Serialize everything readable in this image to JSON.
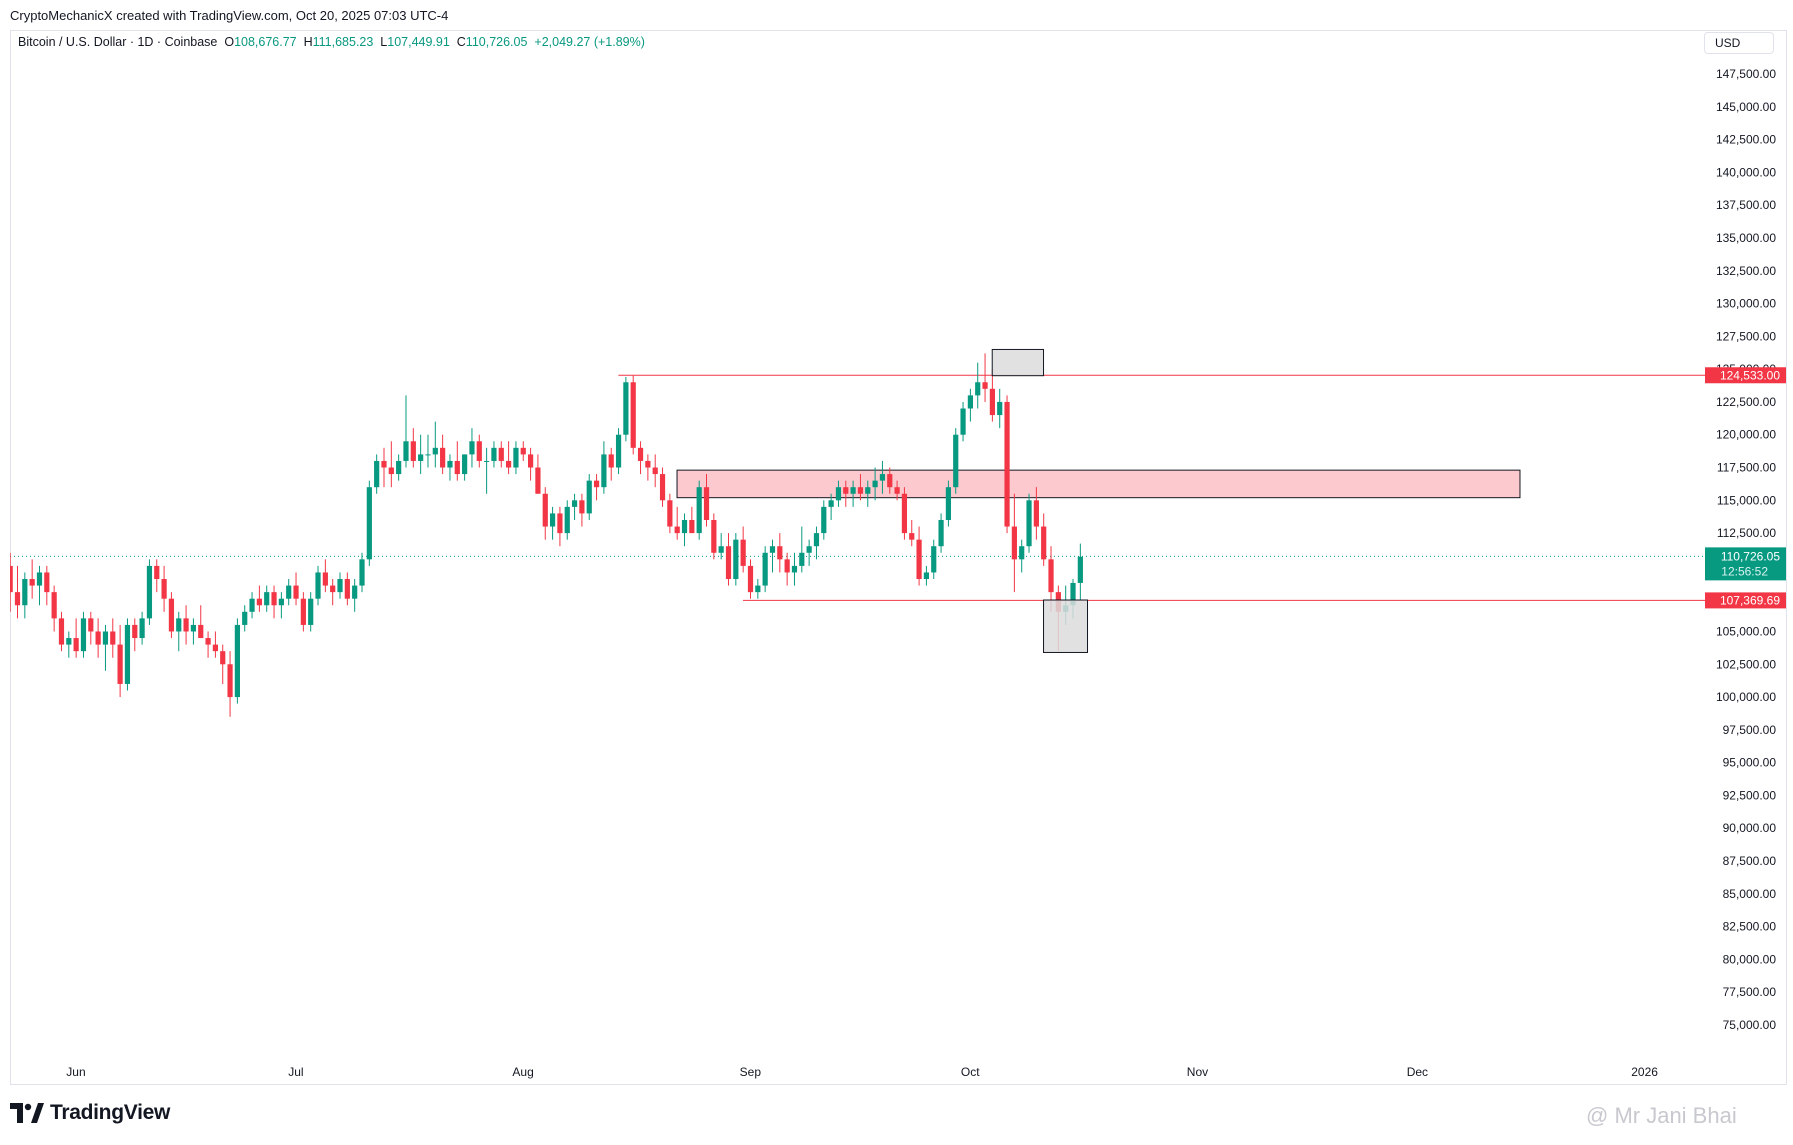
{
  "header": {
    "credit": "CryptoMechanicX created with TradingView.com, Oct 20, 2025 07:03 UTC-4"
  },
  "legend": {
    "symbol": "Bitcoin / U.S. Dollar · 1D · Coinbase",
    "o_label": "O",
    "o_value": "108,676.77",
    "h_label": "H",
    "h_value": "111,685.23",
    "l_label": "L",
    "l_value": "107,449.91",
    "c_label": "C",
    "c_value": "110,726.05",
    "change": "+2,049.27 (+1.89%)"
  },
  "currency": "USD",
  "footer": {
    "brand": "TradingView",
    "watermark": "@ Mr Jani Bhai"
  },
  "colors": {
    "up": "#089981",
    "down": "#f23645",
    "zone_fill": "#fbc9ce",
    "box_fill": "#dcdcdc"
  },
  "chart_data": {
    "type": "candlestick",
    "title": "Bitcoin / U.S. Dollar · 1D · Coinbase",
    "ylim": [
      72500,
      150000
    ],
    "y_ticks": [
      75000,
      77500,
      80000,
      82500,
      85000,
      87500,
      90000,
      92500,
      95000,
      97500,
      100000,
      102500,
      105000,
      107500,
      110000,
      112500,
      115000,
      117500,
      120000,
      122500,
      125000,
      127500,
      130000,
      132500,
      135000,
      137500,
      140000,
      142500,
      145000,
      147500
    ],
    "y_tick_labels": [
      "75,000.00",
      "77,500.00",
      "80,000.00",
      "82,500.00",
      "85,000.00",
      "87,500.00",
      "90,000.00",
      "92,500.00",
      "95,000.00",
      "97,500.00",
      "100,000.00",
      "102,500.00",
      "105,000.00",
      "107,500.00",
      "110,000.00",
      "112,500.00",
      "115,000.00",
      "117,500.00",
      "120,000.00",
      "122,500.00",
      "125,000.00",
      "127,500.00",
      "130,000.00",
      "132,500.00",
      "135,000.00",
      "137,500.00",
      "140,000.00",
      "142,500.00",
      "145,000.00",
      "147,500.00"
    ],
    "x_start": "2025-05-23",
    "x_end": "2026-01-01",
    "x_ticks": [
      {
        "date": "2025-06-01",
        "label": "Jun"
      },
      {
        "date": "2025-07-01",
        "label": "Jul"
      },
      {
        "date": "2025-08-01",
        "label": "Aug"
      },
      {
        "date": "2025-09-01",
        "label": "Sep"
      },
      {
        "date": "2025-10-01",
        "label": "Oct"
      },
      {
        "date": "2025-11-01",
        "label": "Nov"
      },
      {
        "date": "2025-12-01",
        "label": "Dec"
      },
      {
        "date": "2026-01-01",
        "label": "2026"
      }
    ],
    "first_date": "2025-05-23",
    "candles": [
      [
        110000,
        111000,
        106500,
        108000
      ],
      [
        108000,
        110000,
        106000,
        107000
      ],
      [
        107000,
        109500,
        106000,
        109000
      ],
      [
        109000,
        110500,
        107500,
        108500
      ],
      [
        108500,
        110000,
        107000,
        109500
      ],
      [
        109500,
        110000,
        107000,
        108000
      ],
      [
        108000,
        108500,
        105000,
        106000
      ],
      [
        106000,
        106500,
        103500,
        104000
      ],
      [
        104000,
        105000,
        103000,
        104500
      ],
      [
        104500,
        106000,
        103000,
        103500
      ],
      [
        103500,
        106500,
        103000,
        106000
      ],
      [
        106000,
        106500,
        104000,
        105000
      ],
      [
        105000,
        106000,
        103000,
        104000
      ],
      [
        104000,
        105500,
        102000,
        105000
      ],
      [
        105000,
        106000,
        103000,
        104000
      ],
      [
        104000,
        105500,
        100000,
        101000
      ],
      [
        101000,
        106000,
        100500,
        105500
      ],
      [
        105500,
        106000,
        103500,
        104500
      ],
      [
        104500,
        106500,
        104000,
        106000
      ],
      [
        106000,
        110500,
        105500,
        110000
      ],
      [
        110000,
        110500,
        108000,
        109000
      ],
      [
        109000,
        110000,
        106500,
        107500
      ],
      [
        107500,
        108000,
        104500,
        105000
      ],
      [
        105000,
        106500,
        103500,
        106000
      ],
      [
        106000,
        107000,
        104000,
        105000
      ],
      [
        105000,
        106000,
        104000,
        105500
      ],
      [
        105500,
        107000,
        104500,
        104500
      ],
      [
        104500,
        105000,
        103000,
        104000
      ],
      [
        104000,
        105000,
        103000,
        103500
      ],
      [
        103500,
        104000,
        101000,
        102500
      ],
      [
        102500,
        103500,
        98500,
        100000
      ],
      [
        100000,
        106000,
        99500,
        105500
      ],
      [
        105500,
        107000,
        105000,
        106500
      ],
      [
        106500,
        108000,
        106000,
        107500
      ],
      [
        107500,
        108500,
        106500,
        107000
      ],
      [
        107000,
        108500,
        106500,
        108000
      ],
      [
        108000,
        108500,
        106000,
        107000
      ],
      [
        107000,
        108000,
        106000,
        107500
      ],
      [
        107500,
        109000,
        107000,
        108500
      ],
      [
        108500,
        109500,
        107000,
        107500
      ],
      [
        107500,
        108000,
        105000,
        105500
      ],
      [
        105500,
        108000,
        105000,
        107500
      ],
      [
        107500,
        110000,
        107000,
        109500
      ],
      [
        109500,
        110500,
        108000,
        108500
      ],
      [
        108500,
        109000,
        107000,
        108000
      ],
      [
        108000,
        109500,
        107500,
        109000
      ],
      [
        109000,
        109500,
        107000,
        107500
      ],
      [
        107500,
        109000,
        106500,
        108500
      ],
      [
        108500,
        111000,
        108000,
        110500
      ],
      [
        110500,
        116500,
        110000,
        116000
      ],
      [
        116000,
        118500,
        115500,
        118000
      ],
      [
        118000,
        119000,
        116000,
        117500
      ],
      [
        117500,
        119500,
        116000,
        117000
      ],
      [
        117000,
        118500,
        116500,
        118000
      ],
      [
        118000,
        123000,
        117500,
        119500
      ],
      [
        119500,
        120500,
        117500,
        118000
      ],
      [
        118000,
        120000,
        117000,
        118500
      ],
      [
        118500,
        120000,
        117500,
        118500
      ],
      [
        118500,
        121000,
        117500,
        119000
      ],
      [
        119000,
        120000,
        117000,
        117500
      ],
      [
        117500,
        118500,
        116500,
        118000
      ],
      [
        118000,
        119500,
        116500,
        117000
      ],
      [
        117000,
        118500,
        116500,
        118500
      ],
      [
        118500,
        120500,
        117500,
        119500
      ],
      [
        119500,
        120000,
        117500,
        118000
      ],
      [
        118000,
        119000,
        115500,
        118000
      ],
      [
        118000,
        119500,
        117500,
        119000
      ],
      [
        119000,
        119500,
        117500,
        118000
      ],
      [
        118000,
        119500,
        117000,
        117500
      ],
      [
        117500,
        119500,
        117000,
        119000
      ],
      [
        119000,
        119500,
        118000,
        118500
      ],
      [
        118500,
        119000,
        116500,
        117500
      ],
      [
        117500,
        118500,
        115500,
        115500
      ],
      [
        115500,
        116000,
        112000,
        113000
      ],
      [
        113000,
        114500,
        112000,
        114000
      ],
      [
        114000,
        114500,
        111500,
        112500
      ],
      [
        112500,
        115000,
        112000,
        114500
      ],
      [
        114500,
        115500,
        113500,
        115000
      ],
      [
        115000,
        115500,
        113000,
        114000
      ],
      [
        114000,
        117000,
        113500,
        116500
      ],
      [
        116500,
        117000,
        115000,
        116000
      ],
      [
        116000,
        119500,
        115500,
        118500
      ],
      [
        118500,
        119000,
        116500,
        117500
      ],
      [
        117500,
        120500,
        117000,
        120000
      ],
      [
        120000,
        124400,
        119500,
        124000
      ],
      [
        124000,
        124500,
        118500,
        119000
      ],
      [
        119000,
        119500,
        117000,
        118000
      ],
      [
        118000,
        118500,
        116500,
        117500
      ],
      [
        117500,
        118500,
        116000,
        117000
      ],
      [
        117000,
        117500,
        114500,
        115000
      ],
      [
        115000,
        115500,
        112500,
        113000
      ],
      [
        113000,
        114500,
        112000,
        112500
      ],
      [
        112500,
        114000,
        111500,
        113500
      ],
      [
        113500,
        114500,
        112500,
        112500
      ],
      [
        112500,
        116500,
        112000,
        116000
      ],
      [
        116000,
        117000,
        113000,
        113500
      ],
      [
        113500,
        114000,
        110500,
        111000
      ],
      [
        111000,
        112500,
        110500,
        111500
      ],
      [
        111500,
        112500,
        108500,
        109000
      ],
      [
        109000,
        112500,
        108500,
        112000
      ],
      [
        112000,
        113000,
        109500,
        110000
      ],
      [
        110000,
        110500,
        107500,
        108000
      ],
      [
        108000,
        109000,
        107500,
        108500
      ],
      [
        108500,
        111500,
        108000,
        111000
      ],
      [
        111000,
        112000,
        109500,
        111500
      ],
      [
        111500,
        112500,
        109500,
        110500
      ],
      [
        110500,
        111000,
        108500,
        109500
      ],
      [
        109500,
        111000,
        108500,
        110000
      ],
      [
        110000,
        113000,
        109500,
        111000
      ],
      [
        111000,
        112000,
        110000,
        111500
      ],
      [
        111500,
        113000,
        110500,
        112500
      ],
      [
        112500,
        115000,
        112000,
        114500
      ],
      [
        114500,
        115500,
        113500,
        115000
      ],
      [
        115000,
        116500,
        114500,
        116000
      ],
      [
        116000,
        116500,
        114500,
        115500
      ],
      [
        115500,
        116500,
        114500,
        116000
      ],
      [
        116000,
        117000,
        115000,
        115500
      ],
      [
        115500,
        116500,
        114500,
        116000
      ],
      [
        116000,
        117500,
        115000,
        116500
      ],
      [
        116500,
        118000,
        115500,
        117000
      ],
      [
        117000,
        117500,
        115500,
        116000
      ],
      [
        116000,
        116500,
        115000,
        115500
      ],
      [
        115500,
        116000,
        112000,
        112500
      ],
      [
        112500,
        113500,
        111500,
        112000
      ],
      [
        112000,
        113000,
        108500,
        109000
      ],
      [
        109000,
        110000,
        108500,
        109500
      ],
      [
        109500,
        112000,
        109000,
        111500
      ],
      [
        111500,
        114000,
        111000,
        113500
      ],
      [
        113500,
        116500,
        113000,
        116000
      ],
      [
        116000,
        120500,
        115500,
        120000
      ],
      [
        120000,
        122500,
        119500,
        122000
      ],
      [
        122000,
        123500,
        121000,
        123000
      ],
      [
        123000,
        125500,
        122000,
        124000
      ],
      [
        124000,
        126200,
        122500,
        123500
      ],
      [
        123500,
        125000,
        121000,
        121500
      ],
      [
        121500,
        123500,
        120500,
        122500
      ],
      [
        122500,
        123000,
        112500,
        113000
      ],
      [
        113000,
        115500,
        108000,
        110500
      ],
      [
        110500,
        112000,
        109500,
        111500
      ],
      [
        111500,
        115500,
        111000,
        115000
      ],
      [
        115000,
        116000,
        112000,
        113000
      ],
      [
        113000,
        114000,
        110000,
        110500
      ],
      [
        110500,
        111500,
        106500,
        108000
      ],
      [
        108000,
        108500,
        103500,
        106500
      ],
      [
        106500,
        108500,
        105500,
        107000
      ],
      [
        107000,
        109000,
        106000,
        108700
      ],
      [
        108700,
        111700,
        107400,
        110700
      ]
    ],
    "levels": [
      {
        "price": 124533,
        "label": "124,533.00",
        "from_date": "2025-08-14",
        "color": "#f23645"
      },
      {
        "price": 107369.69,
        "label": "107,369.69",
        "from_date": "2025-08-31",
        "color": "#f23645"
      }
    ],
    "last_price": {
      "price": 110726.05,
      "label": "110,726.05",
      "countdown": "12:56:52"
    },
    "zones": [
      {
        "from_date": "2025-08-22",
        "to_date": "2025-12-15",
        "low": 115200,
        "high": 117300,
        "kind": "resistance"
      }
    ],
    "boxes": [
      {
        "from_date": "2025-10-04",
        "to_date": "2025-10-11",
        "low": 124500,
        "high": 126500
      },
      {
        "from_date": "2025-10-11",
        "to_date": "2025-10-17",
        "low": 103400,
        "high": 107400
      }
    ]
  }
}
